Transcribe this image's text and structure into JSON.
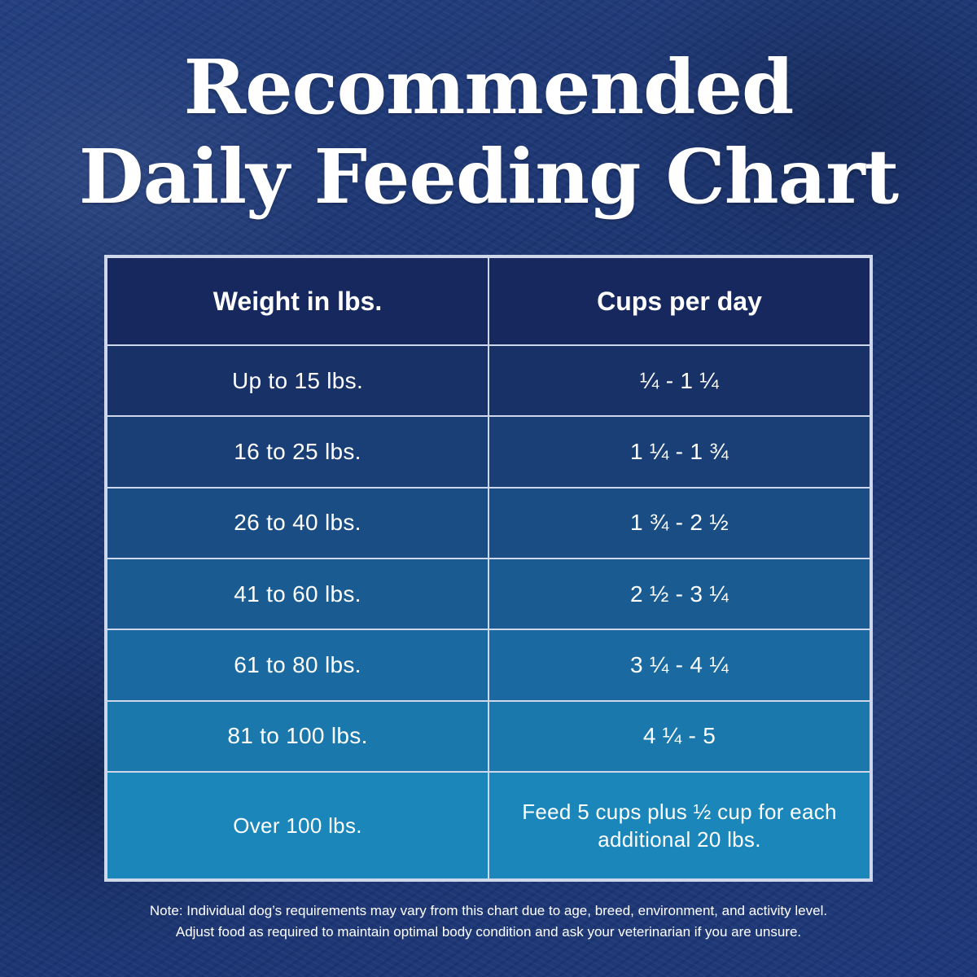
{
  "title": {
    "line1": "Recommended",
    "line2": "Daily Feeding Chart"
  },
  "table": {
    "headers": [
      "Weight in lbs.",
      "Cups per day"
    ],
    "header_color": "#16285e",
    "rows": [
      {
        "weight": "Up to 15 lbs.",
        "cups": "¼  - 1 ¼",
        "color": "#183268"
      },
      {
        "weight": "16 to 25 lbs.",
        "cups": "1 ¼ - 1 ¾",
        "color": "#193f76"
      },
      {
        "weight": "26 to 40 lbs.",
        "cups": "1 ¾  - 2 ½",
        "color": "#1a4d84"
      },
      {
        "weight": "41 to 60 lbs.",
        "cups": "2 ½ - 3 ¼",
        "color": "#1a5b92"
      },
      {
        "weight": "61 to 80 lbs.",
        "cups": "3 ¼ - 4 ¼",
        "color": "#1a6aa1"
      },
      {
        "weight": "81 to 100 lbs.",
        "cups": "4 ¼  - 5",
        "color": "#1a78ad"
      },
      {
        "weight": "Over 100 lbs.",
        "cups": "Feed 5 cups plus ½ cup for each additional 20 lbs.",
        "color": "#1a86ba"
      }
    ]
  },
  "note": {
    "line1": "Note: Individual dog’s requirements may vary from this chart due to age, breed, environment, and activity level.",
    "line2": "Adjust food as required to maintain optimal body condition and ask your veterinarian if you are unsure."
  }
}
